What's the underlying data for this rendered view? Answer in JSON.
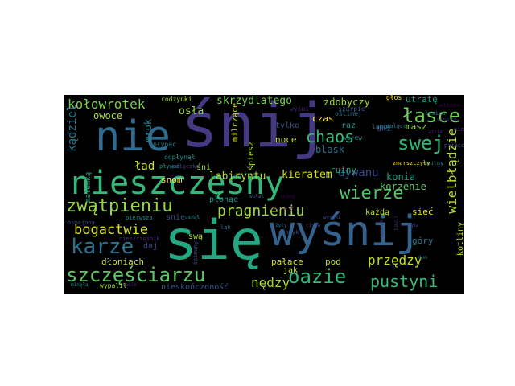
{
  "colors": {
    "canvas": "#ffffff",
    "cloud_background": "#000000"
  },
  "word_cloud": {
    "words": [
      {
        "text": "śnij",
        "color": "#443a83"
      },
      {
        "text": "nie",
        "color": "#2f6b8e"
      },
      {
        "text": "się",
        "color": "#26a784"
      },
      {
        "text": "wyśnij",
        "color": "#33638d"
      },
      {
        "text": "nieszczęsny",
        "color": "#35b779"
      },
      {
        "text": "szczęściarzu",
        "color": "#5ec962"
      },
      {
        "text": "zwątpieniu",
        "color": "#98d83e"
      },
      {
        "text": "wierze",
        "color": "#52c569"
      },
      {
        "text": "łasce",
        "color": "#6ece58"
      },
      {
        "text": "swej",
        "color": "#34b679"
      },
      {
        "text": "karze",
        "color": "#2c728e"
      },
      {
        "text": "oazie",
        "color": "#35b779"
      },
      {
        "text": "pragnieniu",
        "color": "#9fda3a"
      },
      {
        "text": "pustyni",
        "color": "#3aba76"
      },
      {
        "text": "kołowrotek",
        "color": "#7ad151"
      },
      {
        "text": "chaos",
        "color": "#3bbb75"
      },
      {
        "text": "przędzy",
        "color": "#c2df23"
      },
      {
        "text": "nędzy",
        "color": "#a8db34"
      },
      {
        "text": "wielbłądzie",
        "color": "#b5de2b"
      },
      {
        "text": "bogactwie",
        "color": "#d8e219"
      },
      {
        "text": "kądziel",
        "color": "#2a788e"
      },
      {
        "text": "dywanu",
        "color": "#3e4989"
      },
      {
        "text": "skrzydlatego",
        "color": "#75d054"
      },
      {
        "text": "konia",
        "color": "#1fa088"
      },
      {
        "text": "ład",
        "color": "#c8e020"
      },
      {
        "text": "osła",
        "color": "#9bd93c"
      },
      {
        "text": "labiryntu",
        "color": "#addc30"
      },
      {
        "text": "kieratem",
        "color": "#d2e21b"
      },
      {
        "text": "zdobyczy",
        "color": "#a2da37"
      },
      {
        "text": "utratę",
        "color": "#1f9a8a"
      },
      {
        "text": "owoce",
        "color": "#b0dd2f"
      },
      {
        "text": "mrok",
        "color": "#25848e"
      },
      {
        "text": "blask",
        "color": "#2d708e"
      },
      {
        "text": "ruiny",
        "color": "#22a785"
      },
      {
        "text": "korzenie",
        "color": "#5ec962"
      },
      {
        "text": "sieć",
        "color": "#e2e418"
      },
      {
        "text": "góry",
        "color": "#2a788e"
      },
      {
        "text": "dłoniach",
        "color": "#c0df25"
      },
      {
        "text": "pałace",
        "color": "#d0e11c"
      },
      {
        "text": "pod",
        "color": "#bddf26"
      },
      {
        "text": "jak",
        "color": "#c5e021"
      },
      {
        "text": "nieskończoność",
        "color": "#3a548c"
      },
      {
        "text": "każdą",
        "color": "#bfdf25"
      },
      {
        "text": "noce",
        "color": "#c2df23"
      },
      {
        "text": "tylko",
        "color": "#3a538b"
      },
      {
        "text": "czas",
        "color": "#fde725"
      },
      {
        "text": "raz",
        "color": "#1f9f88"
      },
      {
        "text": "dni",
        "color": "#3d4d8a"
      },
      {
        "text": "masz",
        "color": "#a0da39"
      },
      {
        "text": "śpiesz",
        "color": "#addc30"
      },
      {
        "text": "milczące",
        "color": "#d2e21b"
      },
      {
        "text": "płonąc",
        "color": "#1f948c"
      },
      {
        "text": "snom",
        "color": "#fde725"
      },
      {
        "text": "śni",
        "color": "#90d743"
      },
      {
        "text": "daj",
        "color": "#3f4788"
      },
      {
        "text": "swą",
        "color": "#b5de2b"
      },
      {
        "text": "snie",
        "color": "#3d4e8a"
      },
      {
        "text": "maleńką",
        "color": "#20a486"
      },
      {
        "text": "kotliny",
        "color": "#b5de2b"
      },
      {
        "text": "rodzynki",
        "color": "#a8db34"
      },
      {
        "text": "głos",
        "color": "#fde725"
      },
      {
        "text": "płynąc",
        "color": "#277f8e"
      },
      {
        "text": "odpłynął",
        "color": "#218e8d"
      },
      {
        "text": "oślimej",
        "color": "#2c728e"
      },
      {
        "text": "lampy",
        "color": "#2a788e"
      },
      {
        "text": "wbrew",
        "color": "#21918c"
      },
      {
        "text": "szarpie",
        "color": "#3b528b"
      },
      {
        "text": "wyśni",
        "color": "#482475"
      },
      {
        "text": "wypalił",
        "color": "#a5db36"
      },
      {
        "text": "sobie",
        "color": "#482173"
      },
      {
        "text": "minęła",
        "color": "#1f948c"
      },
      {
        "text": "usnął",
        "color": "#1f948c"
      },
      {
        "text": "pierwsza",
        "color": "#218e8d"
      },
      {
        "text": "uśpiony",
        "color": "#440154"
      },
      {
        "text": "osmojona",
        "color": "#3e4989"
      },
      {
        "text": "nieszczęśnik",
        "color": "#482878"
      },
      {
        "text": "promyk",
        "color": "#3b528b"
      },
      {
        "text": "lak",
        "color": "#2c728e"
      },
      {
        "text": "śpiewny",
        "color": "#3a548c"
      },
      {
        "text": "smutny",
        "color": "#277f8e"
      },
      {
        "text": "zmarszczyły",
        "color": "#fde725"
      },
      {
        "text": "paląca",
        "color": "#2a788e"
      },
      {
        "text": "pałacowy",
        "color": "#3e4989"
      },
      {
        "text": "bawić",
        "color": "#482878"
      },
      {
        "text": "łasica",
        "color": "#2d708e"
      },
      {
        "text": "nieba",
        "color": "#472d7b"
      },
      {
        "text": "wicie",
        "color": "#482475"
      },
      {
        "text": "słyszę",
        "color": "#482475"
      },
      {
        "text": "wiosna",
        "color": "#440154"
      },
      {
        "text": "niczym",
        "color": "#46327e"
      },
      {
        "text": "pływać",
        "color": "#1f948c"
      },
      {
        "text": "pałęczkę",
        "color": "#433e85"
      },
      {
        "text": "wołał",
        "color": "#38598c"
      },
      {
        "text": "śnieg",
        "color": "#440154"
      },
      {
        "text": "żyły",
        "color": "#2c728e"
      },
      {
        "text": "cisza",
        "color": "#414487"
      },
      {
        "text": "wysoki",
        "color": "#3e4989"
      },
      {
        "text": "łąka",
        "color": "#3e4989"
      },
      {
        "text": "dom",
        "color": "#2c728e"
      }
    ]
  }
}
